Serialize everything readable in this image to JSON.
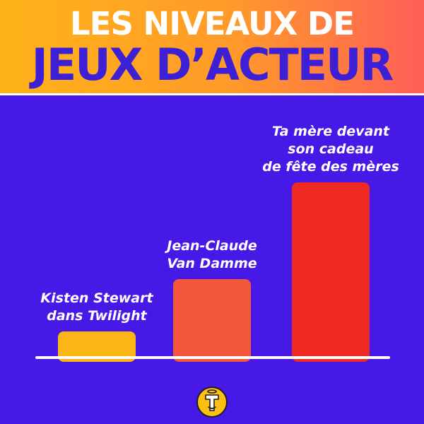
{
  "header": {
    "title_line1": "LES NIVEAUX DE",
    "title_line2": "JEUX D’ACTEUR"
  },
  "chart_data": {
    "type": "bar",
    "categories": [
      [
        "Kisten Stewart",
        "dans Twilight"
      ],
      [
        "Jean-Claude",
        "Van Damme"
      ],
      [
        "Ta mère devant",
        "son cadeau",
        "de fête des mères"
      ]
    ],
    "values": [
      1,
      3,
      6.7
    ],
    "colors": [
      "#fbb514",
      "#f5573a",
      "#ee2a22"
    ],
    "axis_line_color": "#ffffff",
    "grid": false
  },
  "colors": {
    "background": "#4619e6",
    "header_gradient_start": "#ffb318",
    "header_gradient_end": "#ff5f57",
    "title_line2": "#3d1fd6"
  },
  "logo": {
    "icon": "t-letter-badge-icon"
  }
}
